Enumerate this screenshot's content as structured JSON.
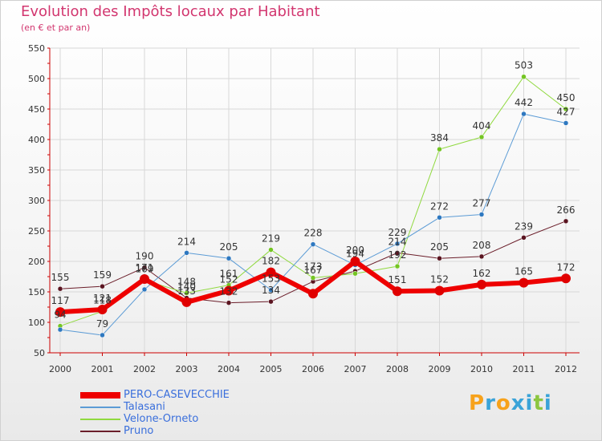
{
  "header": {
    "title": "Evolution des Impôts locaux par Habitant",
    "subtitle": "(en € et par an)"
  },
  "logo": {
    "letters": [
      "P",
      "r",
      "o",
      "x",
      "i",
      "t",
      "i"
    ],
    "colors": [
      "#f7a21b",
      "#3aa3d8",
      "#f7a21b",
      "#3aa3d8",
      "#3aa3d8",
      "#8cc63f",
      "#3aa3d8"
    ]
  },
  "chart_data": {
    "type": "line",
    "title": "Evolution des Impôts locaux par Habitant",
    "subtitle": "(en € et par an)",
    "xlabel": "",
    "ylabel": "",
    "ylim": [
      50,
      550
    ],
    "yticks": [
      50,
      100,
      150,
      200,
      250,
      300,
      350,
      400,
      450,
      500,
      550
    ],
    "grid": true,
    "legend_position": "bottom-left",
    "categories": [
      "2000",
      "2001",
      "2002",
      "2003",
      "2004",
      "2005",
      "2006",
      "2007",
      "2008",
      "2009",
      "2010",
      "2011",
      "2012"
    ],
    "series": [
      {
        "name": "Pruno",
        "color": "#6b1e2a",
        "dot": "#5a1420",
        "width": 1,
        "values": [
          155,
          159,
          190,
          140,
          132,
          134,
          167,
          184,
          214,
          205,
          208,
          239,
          266
        ],
        "labels": [
          "155",
          "159",
          "190",
          "140",
          "132",
          "134",
          "167",
          "",
          "214",
          "205",
          "208",
          "239",
          "266"
        ]
      },
      {
        "name": "Velone-Orneto",
        "color": "#90d93f",
        "dot": "#74c523",
        "width": 1,
        "values": [
          94,
          118,
          169,
          148,
          161,
          219,
          173,
          180,
          192,
          384,
          404,
          503,
          450
        ],
        "labels": [
          "94",
          "118",
          "169",
          "148",
          "161",
          "219",
          "173",
          "",
          "192",
          "384",
          "404",
          "503",
          "450"
        ]
      },
      {
        "name": "Talasani",
        "color": "#5b9bd5",
        "dot": "#2e78c0",
        "width": 1,
        "values": [
          88,
          79,
          154,
          214,
          205,
          153,
          228,
          194,
          229,
          272,
          277,
          442,
          427
        ],
        "labels": [
          "",
          "79",
          "",
          "214",
          "205",
          "153",
          "228",
          "194",
          "229",
          "272",
          "277",
          "442",
          "427"
        ]
      },
      {
        "name": "PERO-CASEVECCHIE",
        "color": "#ee0000",
        "dot": "#e00000",
        "width": 6,
        "values": [
          117,
          121,
          171,
          133,
          152,
          182,
          147,
          200,
          151,
          152,
          162,
          165,
          172
        ],
        "labels": [
          "117",
          "121",
          "171",
          "133",
          "152",
          "182",
          "",
          "200",
          "151",
          "152",
          "162",
          "165",
          "172"
        ]
      }
    ]
  },
  "legend": {
    "items": [
      {
        "label": "PERO-CASEVECCHIE",
        "color": "#ee0000"
      },
      {
        "label": "Talasani",
        "color": "#5b9bd5"
      },
      {
        "label": "Velone-Orneto",
        "color": "#90d93f"
      },
      {
        "label": "Pruno",
        "color": "#6b1e2a"
      }
    ]
  }
}
